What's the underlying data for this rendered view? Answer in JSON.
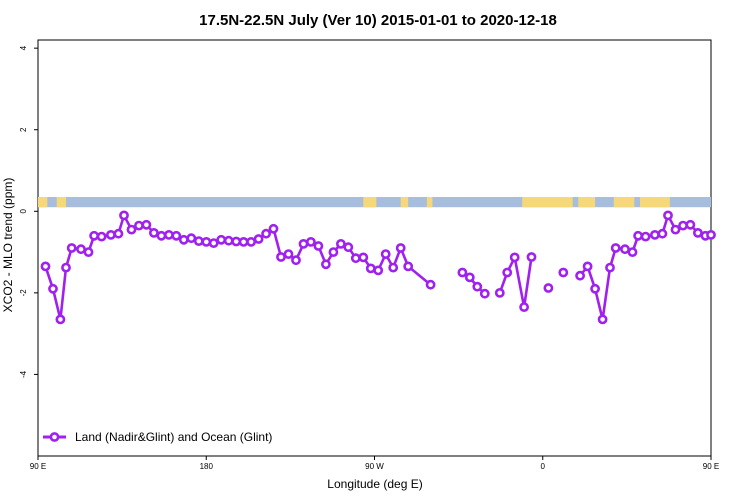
{
  "chart_data": {
    "type": "line",
    "title": "17.5N-22.5N July (Ver 10)   2015-01-01 to 2020-12-18",
    "xlabel": "Longitude (deg E)",
    "ylabel": "XCO2 - MLO trend (ppm)",
    "xlim": [
      90,
      450
    ],
    "ylim": [
      -6,
      4.2
    ],
    "xticks": [
      {
        "value": 90,
        "label": "90 E"
      },
      {
        "value": 180,
        "label": "180"
      },
      {
        "value": 270,
        "label": "90 W"
      },
      {
        "value": 360,
        "label": "0"
      },
      {
        "value": 450,
        "label": "90 E"
      }
    ],
    "yticks": [
      {
        "value": 4,
        "label": "4"
      },
      {
        "value": 2,
        "label": "2"
      },
      {
        "value": 0,
        "label": "0"
      },
      {
        "value": -2,
        "label": "-2"
      },
      {
        "value": -4,
        "label": "-4"
      }
    ],
    "land_ocean_strip": {
      "ymin": 0.1,
      "ymax": 0.35,
      "ocean_color": "#a7bddd",
      "land_color": "#f6d87a",
      "land_segments": [
        [
          90,
          95
        ],
        [
          100,
          105
        ],
        [
          264,
          271
        ],
        [
          284,
          288
        ],
        [
          298,
          301
        ],
        [
          349,
          376
        ],
        [
          379,
          388
        ],
        [
          398,
          409
        ],
        [
          412,
          428
        ]
      ]
    },
    "series": [
      {
        "name": "Land (Nadir&Glint) and Ocean (Glint)",
        "color": "#a020f0",
        "points": [
          [
            94,
            -1.35
          ],
          [
            98,
            -1.9
          ],
          [
            102,
            -2.65
          ],
          [
            105,
            -1.38
          ],
          [
            108,
            -0.9
          ],
          [
            113,
            -0.93
          ],
          [
            117,
            -1.0
          ],
          [
            120,
            -0.6
          ],
          [
            124,
            -0.62
          ],
          [
            129,
            -0.58
          ],
          [
            133,
            -0.55
          ],
          [
            136,
            -0.1
          ],
          [
            140,
            -0.45
          ],
          [
            144,
            -0.35
          ],
          [
            148,
            -0.33
          ],
          [
            152,
            -0.53
          ],
          [
            156,
            -0.6
          ],
          [
            160,
            -0.58
          ],
          [
            164,
            -0.6
          ],
          [
            168,
            -0.7
          ],
          [
            172,
            -0.66
          ],
          [
            176,
            -0.73
          ],
          [
            180,
            -0.75
          ],
          [
            184,
            -0.78
          ],
          [
            188,
            -0.7
          ],
          [
            192,
            -0.72
          ],
          [
            196,
            -0.74
          ],
          [
            200,
            -0.75
          ],
          [
            204,
            -0.75
          ],
          [
            208,
            -0.68
          ],
          [
            212,
            -0.55
          ],
          [
            216,
            -0.43
          ],
          [
            220,
            -1.12
          ],
          [
            224,
            -1.05
          ],
          [
            228,
            -1.2
          ],
          [
            232,
            -0.8
          ],
          [
            236,
            -0.75
          ],
          [
            240,
            -0.85
          ],
          [
            244,
            -1.3
          ],
          [
            248,
            -1.0
          ],
          [
            252,
            -0.8
          ],
          [
            256,
            -0.88
          ],
          [
            260,
            -1.15
          ],
          [
            264,
            -1.13
          ],
          [
            268,
            -1.4
          ],
          [
            272,
            -1.45
          ],
          [
            276,
            -1.05
          ],
          [
            280,
            -1.38
          ],
          [
            284,
            -0.9
          ],
          [
            288,
            -1.35
          ],
          [
            300,
            -1.8
          ],
          null,
          [
            317,
            -1.5
          ],
          [
            321,
            -1.62
          ],
          [
            325,
            -1.85
          ],
          [
            329,
            -2.02
          ],
          null,
          [
            337,
            -2.0
          ],
          [
            341,
            -1.5
          ],
          [
            345,
            -1.13
          ],
          [
            350,
            -2.35
          ],
          [
            354,
            -1.12
          ],
          null,
          [
            363,
            -1.88
          ],
          null,
          [
            371,
            -1.5
          ],
          null,
          [
            380,
            -1.58
          ],
          [
            384,
            -1.35
          ],
          [
            388,
            -1.9
          ],
          [
            392,
            -2.65
          ],
          [
            396,
            -1.38
          ],
          [
            399,
            -0.9
          ],
          [
            404,
            -0.93
          ],
          [
            408,
            -1.0
          ],
          [
            411,
            -0.6
          ],
          [
            415,
            -0.62
          ],
          [
            420,
            -0.58
          ],
          [
            424,
            -0.55
          ],
          [
            427,
            -0.1
          ],
          [
            431,
            -0.45
          ],
          [
            435,
            -0.35
          ],
          [
            439,
            -0.33
          ],
          [
            443,
            -0.53
          ],
          [
            447,
            -0.6
          ],
          [
            450,
            -0.58
          ]
        ]
      }
    ],
    "legend": {
      "position": "bottom-left",
      "label": "Land (Nadir&Glint) and Ocean (Glint)"
    },
    "grid": false
  }
}
